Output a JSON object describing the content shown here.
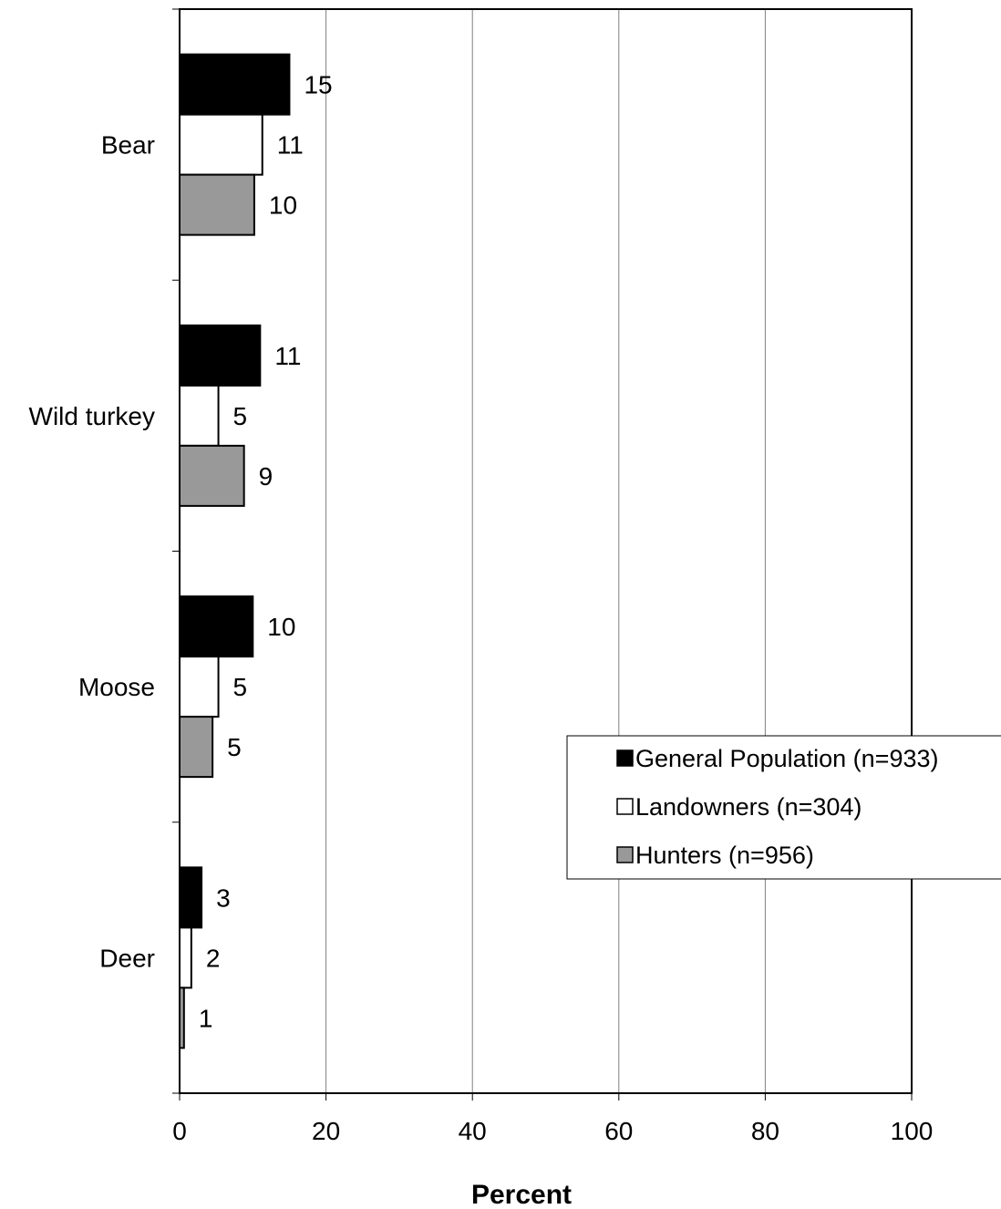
{
  "chart_data": {
    "type": "bar",
    "orientation": "horizontal",
    "categories": [
      "Bear",
      "Wild turkey",
      "Moose",
      "Deer"
    ],
    "series": [
      {
        "name": "General Population (n=933)",
        "values": [
          15,
          11,
          10,
          3
        ],
        "labels": [
          "15",
          "11",
          "10",
          "3"
        ],
        "color": "#000000"
      },
      {
        "name": "Landowners (n=304)",
        "values": [
          11.3,
          5.3,
          5.3,
          1.6
        ],
        "labels": [
          "11",
          "5",
          "5",
          "2"
        ],
        "color": "#ffffff"
      },
      {
        "name": "Hunters (n=956)",
        "values": [
          10.2,
          8.8,
          4.5,
          0.6
        ],
        "labels": [
          "10",
          "9",
          "5",
          "1"
        ],
        "color": "#999999"
      }
    ],
    "xlabel": "Percent",
    "xlim": [
      0,
      100
    ],
    "xticks": [
      "0",
      "20",
      "40",
      "60",
      "80",
      "100"
    ],
    "grid": "vertical",
    "legend_position": "lower-right"
  }
}
